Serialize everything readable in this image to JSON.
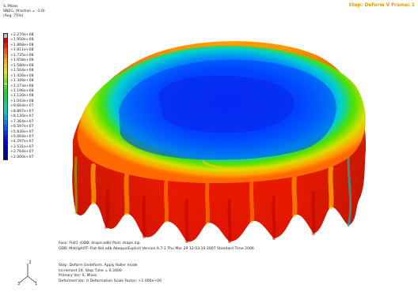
{
  "title_bar": {
    "step_frame": "Step: Deform V Frame: 1"
  },
  "legend": {
    "variable": "S, Mises",
    "section": "SNEG, (fraction = -1.0)",
    "average": "(Avg: 75%)",
    "entries": [
      {
        "value": "+2.270e+08",
        "color": "#c0c0c0"
      },
      {
        "value": "+1.950e+08",
        "color": "#d90000"
      },
      {
        "value": "+1.868e+08",
        "color": "#ff1a00"
      },
      {
        "value": "+1.811e+08",
        "color": "#ff5500"
      },
      {
        "value": "+1.735e+08",
        "color": "#ff8000"
      },
      {
        "value": "+1.658e+08",
        "color": "#ffaa00"
      },
      {
        "value": "+1.580e+08",
        "color": "#ffcc00"
      },
      {
        "value": "+1.504e+08",
        "color": "#e6e600"
      },
      {
        "value": "+1.426e+08",
        "color": "#b3e600"
      },
      {
        "value": "+1.349e+08",
        "color": "#80e600"
      },
      {
        "value": "+1.273e+08",
        "color": "#4de60a"
      },
      {
        "value": "+1.196e+08",
        "color": "#19d919"
      },
      {
        "value": "+1.120e+08",
        "color": "#00d94d"
      },
      {
        "value": "+1.043e+08",
        "color": "#00d980"
      },
      {
        "value": "+9.664e+07",
        "color": "#00d9b3"
      },
      {
        "value": "+8.897e+07",
        "color": "#00ccd9"
      },
      {
        "value": "+8.130e+07",
        "color": "#00a6e6"
      },
      {
        "value": "+7.364e+07",
        "color": "#0080f2"
      },
      {
        "value": "+6.597e+07",
        "color": "#005cff"
      },
      {
        "value": "+5.830e+07",
        "color": "#0033ff"
      },
      {
        "value": "+5.064e+07",
        "color": "#0019f2"
      },
      {
        "value": "+4.297e+07",
        "color": "#0000e6"
      },
      {
        "value": "+3.531e+07",
        "color": "#0000cc"
      },
      {
        "value": "+2.764e+07",
        "color": "#0000b3"
      },
      {
        "value": "+2.000e+07",
        "color": "#000099"
      }
    ]
  },
  "footer": {
    "odb_line": "Face: Flat1 (ODB: drape.odb) Post: drape.inp",
    "version_line": "ODB: Mat/ightTF-Flat-Std.odb    Abaqus/Explicit Version 6.7-1    Thu Mar 29 12:03:10 2007 Standard Time 2006",
    "step_line": "Step: Deform Undeform, Apply Roller mode",
    "increment_line": "Increment   24: Step Time =   0.3400",
    "primary_line": "Primary Var: S, Mises",
    "deformed_line": "Deformed Var: U   Deformation Scale Factor: +1.000e+00"
  },
  "triad": {
    "axis_1": "1",
    "axis_2": "2",
    "axis_3": "3"
  },
  "colors": {
    "title": "#e8a000",
    "background": "#ffffff"
  }
}
